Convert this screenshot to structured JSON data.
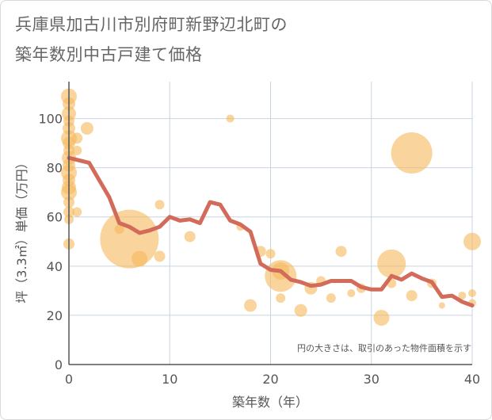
{
  "title": {
    "line1": "兵庫県加古川市別府町新野辺北町の",
    "line2": "築年数別中古戸建て価格"
  },
  "colors": {
    "bubble": "#f5b95f",
    "line": "#d36b5a",
    "grid": "#c8d4e0",
    "axis": "#555555"
  },
  "chart_data": {
    "type": "scatter",
    "title": "兵庫県加古川市別府町新野辺北町の築年数別中古戸建て価格",
    "xlabel": "築年数（年）",
    "ylabel": "坪（3.3㎡）単価（万円）",
    "xlim": [
      0,
      40
    ],
    "ylim": [
      0,
      115
    ],
    "xticks": [
      0,
      10,
      20,
      30,
      40
    ],
    "yticks": [
      0,
      20,
      40,
      60,
      80,
      100
    ],
    "note": "円の大きさは、取引のあった物件面積を示す",
    "bubbles": [
      {
        "x": 0,
        "y": 109,
        "r": 10
      },
      {
        "x": 0,
        "y": 106,
        "r": 8
      },
      {
        "x": 0,
        "y": 102,
        "r": 9
      },
      {
        "x": 0,
        "y": 99,
        "r": 7
      },
      {
        "x": 0,
        "y": 96,
        "r": 8
      },
      {
        "x": 0,
        "y": 92,
        "r": 10
      },
      {
        "x": 0,
        "y": 90,
        "r": 8
      },
      {
        "x": 0,
        "y": 87,
        "r": 7
      },
      {
        "x": 0,
        "y": 84,
        "r": 9
      },
      {
        "x": 0,
        "y": 81,
        "r": 8
      },
      {
        "x": 0,
        "y": 78,
        "r": 10
      },
      {
        "x": 0,
        "y": 75,
        "r": 8
      },
      {
        "x": 0,
        "y": 72,
        "r": 9
      },
      {
        "x": 0,
        "y": 70,
        "r": 10
      },
      {
        "x": 0,
        "y": 66,
        "r": 7
      },
      {
        "x": 0,
        "y": 62,
        "r": 7
      },
      {
        "x": 0,
        "y": 59,
        "r": 6
      },
      {
        "x": 0,
        "y": 49,
        "r": 7
      },
      {
        "x": 0.8,
        "y": 92,
        "r": 7
      },
      {
        "x": 0.8,
        "y": 87,
        "r": 6
      },
      {
        "x": 0.8,
        "y": 62,
        "r": 6
      },
      {
        "x": 1.8,
        "y": 96,
        "r": 8
      },
      {
        "x": 5,
        "y": 55,
        "r": 6
      },
      {
        "x": 6,
        "y": 51,
        "r": 37
      },
      {
        "x": 7,
        "y": 43,
        "r": 10
      },
      {
        "x": 9,
        "y": 65,
        "r": 6
      },
      {
        "x": 9,
        "y": 44,
        "r": 7
      },
      {
        "x": 12,
        "y": 52,
        "r": 7
      },
      {
        "x": 16,
        "y": 100,
        "r": 5
      },
      {
        "x": 17,
        "y": 56,
        "r": 5
      },
      {
        "x": 18,
        "y": 24,
        "r": 8
      },
      {
        "x": 19,
        "y": 46,
        "r": 7
      },
      {
        "x": 20,
        "y": 45,
        "r": 6
      },
      {
        "x": 21,
        "y": 38,
        "r": 11
      },
      {
        "x": 21,
        "y": 36,
        "r": 20
      },
      {
        "x": 21,
        "y": 27,
        "r": 6
      },
      {
        "x": 23,
        "y": 22,
        "r": 8
      },
      {
        "x": 24,
        "y": 31,
        "r": 8
      },
      {
        "x": 25,
        "y": 34,
        "r": 6
      },
      {
        "x": 26,
        "y": 27,
        "r": 6
      },
      {
        "x": 27,
        "y": 46,
        "r": 7
      },
      {
        "x": 28,
        "y": 29,
        "r": 5
      },
      {
        "x": 29,
        "y": 31,
        "r": 6
      },
      {
        "x": 31,
        "y": 19,
        "r": 10
      },
      {
        "x": 32,
        "y": 41,
        "r": 18
      },
      {
        "x": 32,
        "y": 33,
        "r": 6
      },
      {
        "x": 34,
        "y": 86,
        "r": 26
      },
      {
        "x": 34,
        "y": 28,
        "r": 7
      },
      {
        "x": 36,
        "y": 33,
        "r": 6
      },
      {
        "x": 37,
        "y": 24,
        "r": 4
      },
      {
        "x": 39,
        "y": 28,
        "r": 5
      },
      {
        "x": 40,
        "y": 50,
        "r": 11
      },
      {
        "x": 40,
        "y": 29,
        "r": 5
      },
      {
        "x": 40,
        "y": 25,
        "r": 5
      }
    ],
    "trend": {
      "x": [
        0,
        1,
        2,
        3,
        4,
        5,
        6,
        7,
        8,
        9,
        10,
        11,
        12,
        13,
        14,
        15,
        16,
        17,
        18,
        19,
        20,
        21,
        22,
        23,
        24,
        25,
        26,
        27,
        28,
        29,
        30,
        31,
        32,
        33,
        34,
        35,
        36,
        37,
        38,
        39,
        40
      ],
      "y": [
        84,
        83,
        82,
        75,
        68,
        57.5,
        56,
        53.5,
        54.5,
        56,
        60,
        58.5,
        59,
        57.5,
        66,
        65,
        58.5,
        57,
        54,
        41,
        38.5,
        38,
        34.5,
        33.5,
        32,
        32.5,
        34,
        34,
        34,
        31.5,
        30.5,
        30.5,
        36,
        34.5,
        37,
        35,
        33.5,
        27.5,
        28,
        25.5,
        24
      ]
    }
  }
}
